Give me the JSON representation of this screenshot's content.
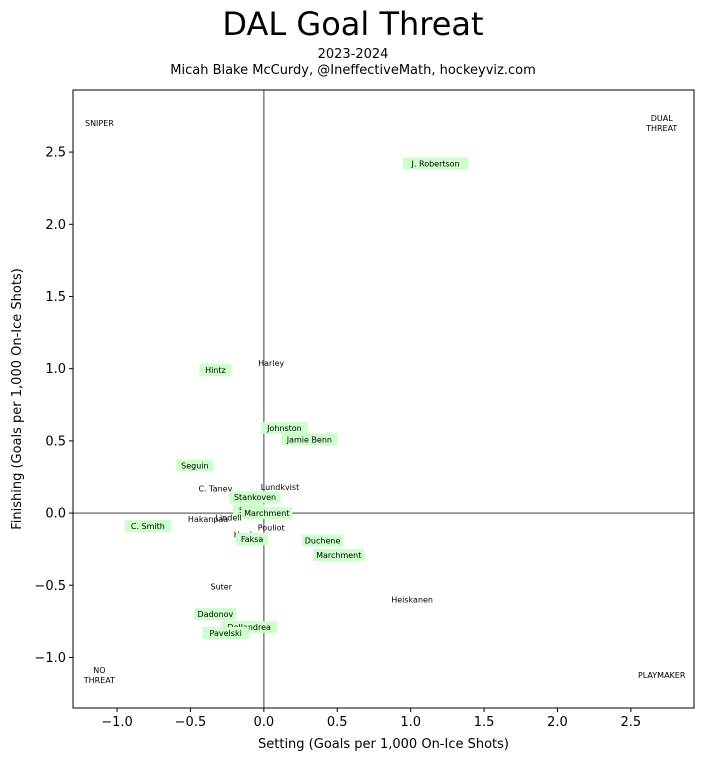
{
  "title": "DAL Goal Threat",
  "subtitle_line1": "2023-2024",
  "subtitle_line2": "Micah Blake McCurdy, @IneffectiveMath, hockeyviz.com",
  "chart_data": {
    "type": "scatter",
    "title": "DAL Goal Threat",
    "subtitle": [
      "2023-2024",
      "Micah Blake McCurdy, @IneffectiveMath, hockeyviz.com"
    ],
    "xlabel": "Setting (Goals per 1,000 On-Ice Shots)",
    "ylabel": "Finishing (Goals per 1,000 On-Ice Shots)",
    "xlim": [
      -1.3,
      2.93
    ],
    "ylim": [
      -1.35,
      2.93
    ],
    "xticks": [
      -1.0,
      -0.5,
      0.0,
      0.5,
      1.0,
      1.5,
      2.0,
      2.5
    ],
    "xtick_labels": [
      "−1.0",
      "−0.5",
      "0.0",
      "0.5",
      "1.0",
      "1.5",
      "2.0",
      "2.5"
    ],
    "yticks": [
      -1.0,
      -0.5,
      0.0,
      0.5,
      1.0,
      1.5,
      2.0,
      2.5
    ],
    "ytick_labels": [
      "−1.0",
      "−0.5",
      "0.0",
      "0.5",
      "1.0",
      "1.5",
      "2.0",
      "2.5"
    ],
    "grid": false,
    "reference_lines": {
      "x": 0,
      "y": 0,
      "color": "#808080"
    },
    "highlight_color": "#ccffcc",
    "quadrant_labels": [
      {
        "lines": [
          "SNIPER"
        ],
        "x": -1.12,
        "y": 2.7
      },
      {
        "lines": [
          "DUAL",
          "THREAT"
        ],
        "x": 2.71,
        "y": 2.7
      },
      {
        "lines": [
          "NO",
          "THREAT"
        ],
        "x": -1.12,
        "y": -1.12
      },
      {
        "lines": [
          "PLAYMAKER"
        ],
        "x": 2.71,
        "y": -1.12
      }
    ],
    "points": [
      {
        "label": "J. Robertson",
        "x": 1.17,
        "y": 2.42,
        "highlight": true
      },
      {
        "label": "Harley",
        "x": 0.05,
        "y": 1.04,
        "highlight": false
      },
      {
        "label": "Hintz",
        "x": -0.33,
        "y": 0.99,
        "highlight": true
      },
      {
        "label": "Johnston",
        "x": 0.14,
        "y": 0.59,
        "highlight": true
      },
      {
        "label": "Jamie Benn",
        "x": 0.31,
        "y": 0.51,
        "highlight": true
      },
      {
        "label": "Seguin",
        "x": -0.47,
        "y": 0.33,
        "highlight": true
      },
      {
        "label": "C. Tanev",
        "x": -0.33,
        "y": 0.17,
        "highlight": false
      },
      {
        "label": "Lundkvist",
        "x": 0.11,
        "y": 0.18,
        "highlight": false
      },
      {
        "label": "Stankoven",
        "x": -0.06,
        "y": 0.11,
        "highlight": true
      },
      {
        "label": "Steel",
        "x": -0.1,
        "y": 0.02,
        "highlight": true
      },
      {
        "label": "Marchment",
        "x": 0.02,
        "y": 0.0,
        "highlight": true
      },
      {
        "label": "Hakanpaa",
        "x": -0.38,
        "y": -0.04,
        "highlight": false
      },
      {
        "label": "Lindell",
        "x": -0.24,
        "y": -0.03,
        "highlight": false
      },
      {
        "label": "C. Smith",
        "x": -0.79,
        "y": -0.09,
        "highlight": true
      },
      {
        "label": "Pouliot",
        "x": 0.05,
        "y": -0.1,
        "highlight": false
      },
      {
        "label": "Hanley",
        "x": -0.11,
        "y": -0.15,
        "highlight": false
      },
      {
        "label": "Faksa",
        "x": -0.08,
        "y": -0.18,
        "highlight": true
      },
      {
        "label": "Duchene",
        "x": 0.4,
        "y": -0.19,
        "highlight": true
      },
      {
        "label": "Marchment",
        "x": 0.51,
        "y": -0.29,
        "highlight": true
      },
      {
        "label": "Suter",
        "x": -0.29,
        "y": -0.51,
        "highlight": false
      },
      {
        "label": "Heiskanen",
        "x": 1.01,
        "y": -0.6,
        "highlight": false
      },
      {
        "label": "Dadonov",
        "x": -0.33,
        "y": -0.7,
        "highlight": true
      },
      {
        "label": "Dellandrea",
        "x": -0.1,
        "y": -0.79,
        "highlight": true
      },
      {
        "label": "Pavelski",
        "x": -0.26,
        "y": -0.83,
        "highlight": true
      }
    ]
  }
}
